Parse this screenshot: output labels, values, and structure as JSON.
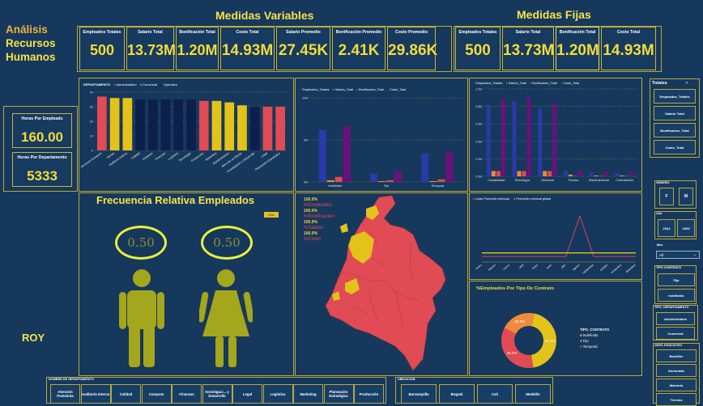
{
  "header": {
    "variables_title": "Medidas Variables",
    "fixed_title": "Medidas Fijas"
  },
  "brand": {
    "line1": "Análisis",
    "line2": "Recursos",
    "line3": "Humanos",
    "footer": "ROY"
  },
  "kpis_variables": [
    {
      "label": "Empleados Totales",
      "value": "500"
    },
    {
      "label": "Salario Total",
      "value": "13.73M"
    },
    {
      "label": "Bonificación Total",
      "value": "1.20M"
    },
    {
      "label": "Costo Total",
      "value": "14.93M"
    },
    {
      "label": "Salario Promedio",
      "value": "27.45K"
    },
    {
      "label": "Bonificación Promedio",
      "value": "2.41K"
    },
    {
      "label": "Costo Promedio",
      "value": "29.86K"
    }
  ],
  "kpis_fijas": [
    {
      "label": "Empleados Totales",
      "value": "500"
    },
    {
      "label": "Salario Total",
      "value": "13.73M"
    },
    {
      "label": "Bonificación Total",
      "value": "1.20M"
    },
    {
      "label": "Costo Total",
      "value": "14.93M"
    }
  ],
  "hours": {
    "per_employee_label": "Horas Por Empleado",
    "per_employee_value": "160.00",
    "per_department_label": "Horas Por Departamento",
    "per_department_value": "5333"
  },
  "dept_chart": {
    "legend_title": "DEPARTAMENTO",
    "legend": [
      "Administrativo",
      "Comercial",
      "Operativo"
    ]
  },
  "contract_chart": {
    "legend": [
      "Empleados_Totales",
      "Salario_Total",
      "Bonificacion_Total",
      "Costo_Total"
    ]
  },
  "dept_cost_chart": {
    "legend": [
      "Empleados_Totales",
      "Salario_Total",
      "Bonificacion_Total",
      "Costo_Total"
    ]
  },
  "line_chart": {
    "legend": [
      "Costo Promedio Mensual",
      "Promedio mensual global"
    ]
  },
  "freq": {
    "title": "Frecuencia Relativa Empleados",
    "male_value": "0.50",
    "female_value": "0.50",
    "legend": "Mas"
  },
  "map_stats": [
    {
      "value": "100.0%",
      "label": "%Empleados"
    },
    {
      "value": "100.0%",
      "label": "%Bonificacion"
    },
    {
      "value": "100.0%",
      "label": "%Salario"
    },
    {
      "value": "100.0%",
      "label": "%Costo"
    }
  ],
  "donut": {
    "title": "%Empleados Por Tipo De Contrato",
    "legend_title": "TIPO_CONTRATO",
    "legend": [
      "Indefinido",
      "Fijo",
      "Temporal"
    ],
    "labels": [
      "44.2%",
      "35.2%",
      "20.6%"
    ]
  },
  "chart_data": [
    {
      "type": "bar",
      "title": "",
      "categories": [
        "Recursos Humanos",
        "Ventas",
        "Auditoría Interna",
        "Calidad",
        "Compras",
        "Finanzas",
        "Logística",
        "Tecnología",
        "Producción",
        "Marketing",
        "Mantenimiento",
        "Atención al Cliente",
        "Investigación y Desarrollo",
        "Legal",
        "Planeación Estratégica"
      ],
      "values": [
        37,
        36,
        36,
        35,
        35,
        35,
        35,
        35,
        34,
        34,
        33,
        31,
        30,
        30,
        30
      ],
      "ylim": [
        0,
        40
      ],
      "yticks": [
        "0",
        "10",
        "20",
        "30",
        "40"
      ]
    },
    {
      "type": "bar",
      "title": "",
      "categories": [
        "Indefinido",
        "Fijo",
        "Temporal"
      ],
      "series": [
        {
          "name": "Empleados_Totales",
          "values": [
            6.2,
            1.0,
            3.4
          ]
        },
        {
          "name": "Salario_Total",
          "values": [
            0.2,
            0.1,
            0.1
          ]
        },
        {
          "name": "Bonificacion_Total",
          "values": [
            0.6,
            0.2,
            0.3
          ]
        },
        {
          "name": "Costo_Total",
          "values": [
            6.6,
            1.3,
            3.6
          ]
        }
      ],
      "ylim": [
        0,
        10
      ],
      "yticks": [
        "0M",
        "5M",
        "10M"
      ]
    },
    {
      "type": "bar",
      "title": "",
      "categories": [
        "Contabilidad",
        "Tecnología",
        "Gerencia",
        "Técnico",
        "Mantenimiento",
        "Contratación"
      ],
      "series": [
        {
          "name": "Empleados_Totales",
          "values": [
            0.82,
            0.86,
            0.78,
            0.06,
            0.05,
            0.04
          ]
        },
        {
          "name": "Salario_Total",
          "values": [
            0.06,
            0.06,
            0.06,
            0.02,
            0.01,
            0.01
          ]
        },
        {
          "name": "Bonificacion_Total",
          "values": [
            0.06,
            0.06,
            0.06,
            0.0,
            0.0,
            0.0
          ]
        },
        {
          "name": "Costo_Total",
          "values": [
            0.88,
            0.9,
            0.84,
            0.07,
            0.05,
            0.05
          ]
        }
      ],
      "ylim": [
        0,
        1
      ],
      "yticks": [
        "0.0M",
        "0.2M",
        "0.4M",
        "0.6M",
        "0.8M",
        "1.0M"
      ]
    },
    {
      "type": "line",
      "title": "",
      "categories": [
        "enero",
        "febrero",
        "marzo",
        "abril",
        "mayo",
        "junio",
        "julio",
        "agosto",
        "septiembre",
        "octubre",
        "noviembre",
        "diciembre"
      ],
      "series": [
        {
          "name": "Costo Promedio Mensual",
          "values": [
            0.3,
            0.3,
            0.3,
            0.3,
            0.3,
            0.3,
            0.3,
            2.5,
            0.3,
            0.3,
            0.3,
            0.3
          ]
        },
        {
          "name": "Promedio mensual global",
          "values": [
            0.5,
            0.5,
            0.5,
            0.5,
            0.5,
            0.5,
            0.5,
            0.5,
            0.5,
            0.5,
            0.5,
            0.5
          ]
        }
      ],
      "ylim": [
        0,
        3
      ],
      "yticks": [
        "0",
        "1",
        "2",
        "3"
      ]
    },
    {
      "type": "pie",
      "title": "%Empleados Por Tipo De Contrato",
      "categories": [
        "Indefinido",
        "Fijo",
        "Temporal"
      ],
      "values": [
        44.2,
        35.2,
        20.6
      ]
    }
  ],
  "bottom_filters": {
    "dept_title": "NOMBRE DE DEPARTAMENTO",
    "depts": [
      "Atención Postventa",
      "Auditoría Interna",
      "Calidad",
      "Compras",
      "Finanzas",
      "Investigaci... y Desarrollo",
      "Legal",
      "Logística",
      "Marketing",
      "Planeación Estratégica",
      "Producción"
    ],
    "city_title": "UBICACION",
    "cities": [
      "Barranquilla",
      "Bogotá",
      "Cali",
      "Medellín"
    ]
  },
  "sidebar": {
    "totales_title": "Totales",
    "totales": [
      "Empleados_Totales",
      "Salario Total",
      "Bonificacion_Total",
      "Costo_Total"
    ],
    "genero_title": "GENERO",
    "genero": [
      "F",
      "M"
    ],
    "anio_title": "Año",
    "anio": [
      "2024",
      "2025"
    ],
    "mes_title": "Mes",
    "mes_value": "All",
    "contrato_title": "TIPO CONTRATO",
    "contrato": [
      "Fijo",
      "Indefinido"
    ],
    "tipo_dep_title": "TIPO_DEPARTAMENTO",
    "tipo_dep": [
      "Administrativo",
      "Comercial"
    ],
    "nivel_title": "NIVEL EDUCATIVO",
    "nivel": [
      "Bachiller",
      "Doctorado",
      "Maestría",
      "Técnico"
    ]
  },
  "colors": {
    "bg": "#16385c",
    "yellow": "#e3c21a",
    "red": "#e04b55",
    "navy": "#0d1f4d",
    "blue": "#2a3aa8",
    "purple": "#6b117c",
    "orange": "#f08a3c"
  }
}
